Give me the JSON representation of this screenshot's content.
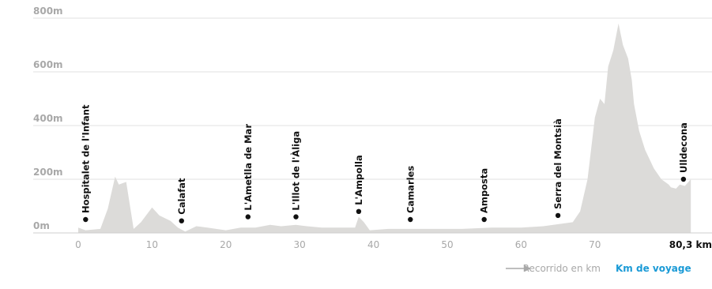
{
  "chart_data": {
    "type": "area",
    "xlabel": "Recorrido en km",
    "xlabel_alt": "Km de voyage",
    "xlim": [
      0,
      80.3
    ],
    "ylim": [
      0,
      800
    ],
    "yticks": [
      {
        "value": 0,
        "label": "0m"
      },
      {
        "value": 200,
        "label": "200m"
      },
      {
        "value": 400,
        "label": "400m"
      },
      {
        "value": 600,
        "label": "600m"
      },
      {
        "value": 800,
        "label": "800m"
      }
    ],
    "xticks": [
      {
        "value": 0,
        "label": "0"
      },
      {
        "value": 10,
        "label": "10"
      },
      {
        "value": 20,
        "label": "20"
      },
      {
        "value": 30,
        "label": "30"
      },
      {
        "value": 40,
        "label": "40"
      },
      {
        "value": 50,
        "label": "50"
      },
      {
        "value": 60,
        "label": "60"
      },
      {
        "value": 70,
        "label": "70"
      }
    ],
    "end_label": "80,3 km",
    "grid": true,
    "fill_color": "#dcdbd9",
    "text_color": "#111111",
    "tick_color": "#a8a8a8",
    "accent_color": "#1a9ad6",
    "profile": [
      [
        0,
        20
      ],
      [
        1,
        10
      ],
      [
        3,
        15
      ],
      [
        4,
        90
      ],
      [
        5,
        210
      ],
      [
        5.5,
        180
      ],
      [
        6.5,
        190
      ],
      [
        7.5,
        15
      ],
      [
        8.5,
        40
      ],
      [
        10,
        95
      ],
      [
        11,
        65
      ],
      [
        12.5,
        45
      ],
      [
        13.5,
        20
      ],
      [
        14.5,
        5
      ],
      [
        16,
        25
      ],
      [
        17.5,
        20
      ],
      [
        20,
        10
      ],
      [
        22,
        20
      ],
      [
        24,
        20
      ],
      [
        26,
        30
      ],
      [
        27.5,
        25
      ],
      [
        29.5,
        30
      ],
      [
        31,
        25
      ],
      [
        33,
        20
      ],
      [
        36,
        20
      ],
      [
        37.5,
        20
      ],
      [
        38,
        60
      ],
      [
        38.7,
        40
      ],
      [
        39.5,
        10
      ],
      [
        42,
        15
      ],
      [
        45,
        15
      ],
      [
        48,
        15
      ],
      [
        52,
        15
      ],
      [
        56,
        20
      ],
      [
        60,
        20
      ],
      [
        63,
        25
      ],
      [
        67,
        40
      ],
      [
        68,
        80
      ],
      [
        69,
        200
      ],
      [
        70,
        430
      ],
      [
        70.7,
        500
      ],
      [
        71.3,
        480
      ],
      [
        71.8,
        620
      ],
      [
        72.5,
        680
      ],
      [
        73.2,
        780
      ],
      [
        73.8,
        700
      ],
      [
        74.5,
        650
      ],
      [
        75,
        570
      ],
      [
        75.3,
        480
      ],
      [
        76,
        380
      ],
      [
        76.8,
        310
      ],
      [
        78,
        240
      ],
      [
        79,
        200
      ],
      [
        80,
        180
      ],
      [
        80.3,
        170
      ],
      [
        81,
        165
      ],
      [
        81.5,
        180
      ],
      [
        82.2,
        175
      ],
      [
        83,
        200
      ]
    ],
    "places": [
      {
        "name": "Hospitalet de l'Infant",
        "km": 1,
        "elev": 50
      },
      {
        "name": "Calafat",
        "km": 14,
        "elev": 45
      },
      {
        "name": "L'Ametlla de Mar",
        "km": 23,
        "elev": 60
      },
      {
        "name": "L'Illot de l'Àliga",
        "km": 29.5,
        "elev": 60
      },
      {
        "name": "L'Ampolla",
        "km": 38,
        "elev": 80
      },
      {
        "name": "Camarles",
        "km": 45,
        "elev": 50
      },
      {
        "name": "Amposta",
        "km": 55,
        "elev": 50
      },
      {
        "name": "Serra del Montsià",
        "km": 65,
        "elev": 65
      },
      {
        "name": "Ulldecona",
        "km": 82,
        "elev": 200
      }
    ]
  }
}
